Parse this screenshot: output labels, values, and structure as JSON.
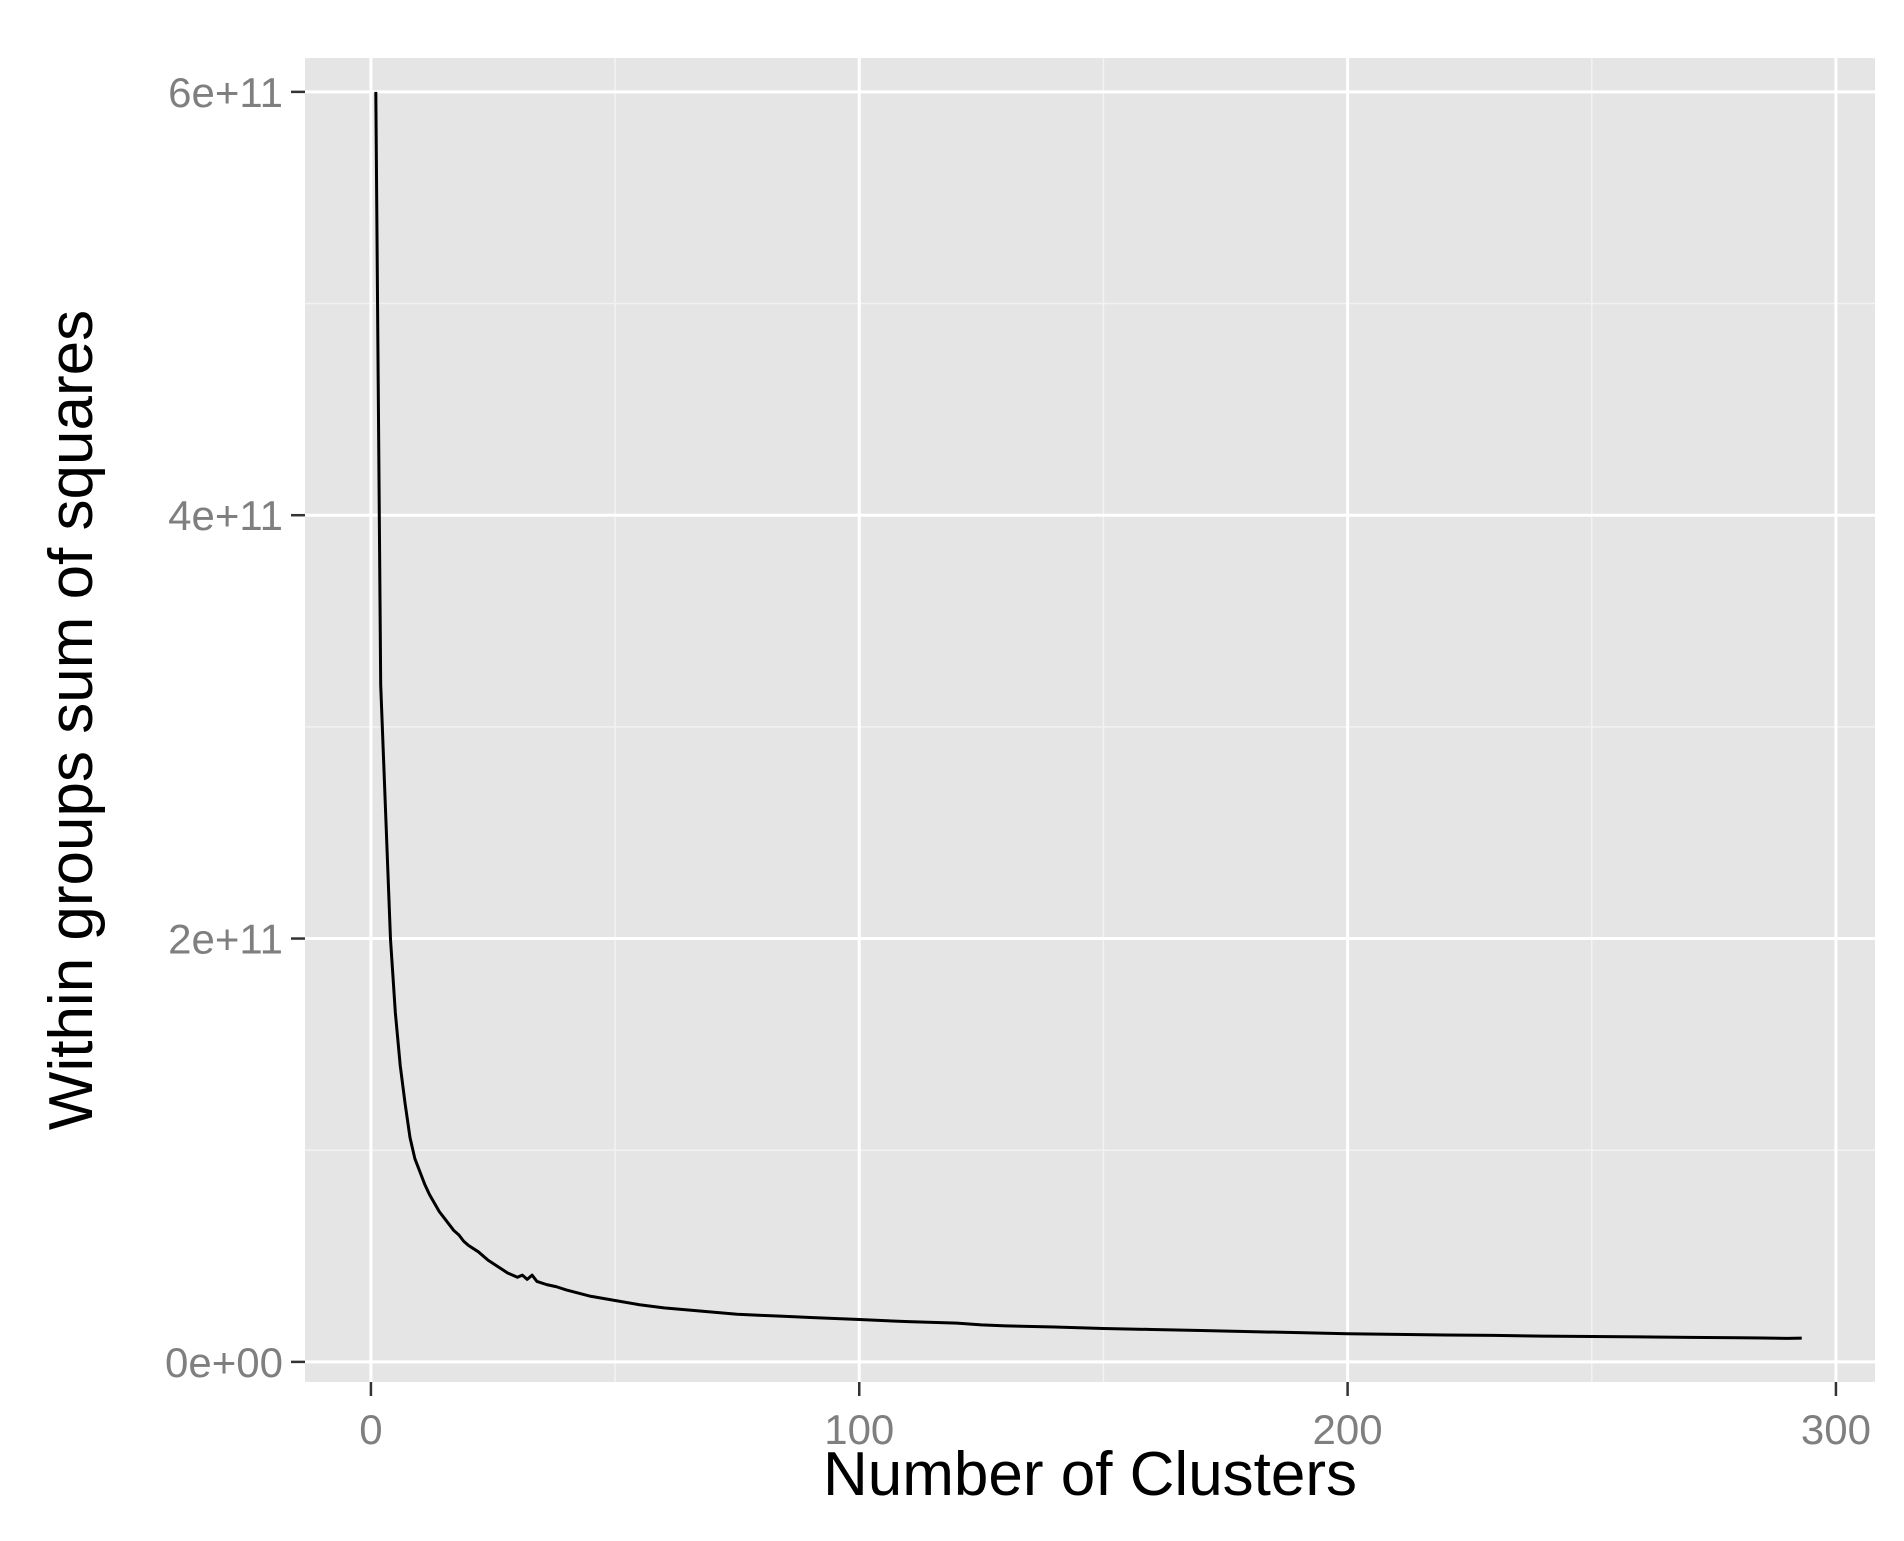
{
  "chart_data": {
    "type": "line",
    "title": "",
    "xlabel": "Number of Clusters",
    "ylabel": "Within groups sum of squares",
    "xlim": [
      -13.5,
      308
    ],
    "ylim": [
      -9500000000.0,
      616000000000.0
    ],
    "grid": true,
    "x_ticks": [
      {
        "value": 0,
        "label": "0"
      },
      {
        "value": 100,
        "label": "100"
      },
      {
        "value": 200,
        "label": "200"
      },
      {
        "value": 300,
        "label": "300"
      }
    ],
    "y_ticks": [
      {
        "value": 0,
        "label": "0e+00"
      },
      {
        "value": 200000000000,
        "label": "2e+11"
      },
      {
        "value": 400000000000,
        "label": "4e+11"
      },
      {
        "value": 600000000000,
        "label": "6e+11"
      }
    ],
    "series": [
      {
        "color": "#000000",
        "x": [
          1,
          2,
          3,
          4,
          5,
          6,
          7,
          8,
          9,
          10,
          11,
          12,
          13,
          14,
          15,
          16,
          17,
          18,
          19,
          20,
          22,
          24,
          26,
          28,
          30,
          31,
          32,
          33,
          34,
          36,
          38,
          40,
          45,
          50,
          55,
          60,
          65,
          70,
          75,
          80,
          85,
          90,
          95,
          100,
          110,
          120,
          125,
          130,
          140,
          150,
          160,
          170,
          180,
          190,
          200,
          210,
          220,
          230,
          240,
          250,
          260,
          270,
          280,
          285,
          290,
          293
        ],
        "y": [
          600000000000,
          320000000000,
          260000000000,
          200000000000,
          165000000000,
          140000000000,
          122000000000,
          106000000000,
          96000000000,
          90000000000,
          84000000000,
          79000000000,
          75000000000,
          71000000000,
          68000000000,
          65000000000,
          62000000000,
          60000000000,
          57000000000,
          55000000000,
          52000000000,
          48000000000,
          45000000000,
          42000000000,
          40000000000,
          41000000000,
          39000000000,
          41000000000,
          38000000000,
          36500000000,
          35500000000,
          34000000000,
          31000000000,
          29000000000,
          27000000000,
          25500000000,
          24500000000,
          23500000000,
          22500000000,
          22000000000,
          21500000000,
          21000000000,
          20500000000,
          20000000000,
          19000000000,
          18300000000,
          17500000000,
          17000000000,
          16500000000,
          15800000000,
          15300000000,
          14800000000,
          14300000000,
          13800000000,
          13300000000,
          13000000000,
          12700000000,
          12500000000,
          12200000000,
          12000000000,
          11800000000,
          11600000000,
          11400000000,
          11300000000,
          11100000000,
          11200000000
        ]
      }
    ]
  }
}
